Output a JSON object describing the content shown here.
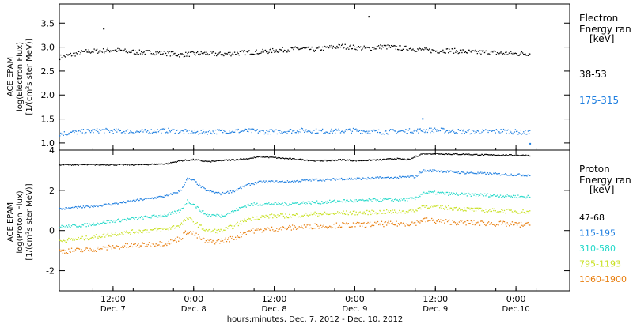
{
  "chart_data": [
    {
      "type": "scatter",
      "panel": "electron",
      "ylabel_lines": [
        "ACE EPAM",
        "log(Electron Flux)",
        "[1/(cm²s ster MeV)]"
      ],
      "legend_title_lines": [
        "Electron",
        "Energy ran",
        "[keV]"
      ],
      "xlim": [
        0,
        76
      ],
      "ylim": [
        0.85,
        3.9
      ],
      "yticks": [
        1.0,
        1.5,
        2.0,
        2.5,
        3.0,
        3.5
      ],
      "ytick_labels": [
        "1.0",
        "1.5",
        "2.0",
        "2.5",
        "3.0",
        "3.5"
      ],
      "series": [
        {
          "name": "38-53",
          "color": "#000000",
          "x": [
            0,
            2,
            4,
            6,
            8,
            10,
            12,
            14,
            16,
            18,
            20,
            22,
            24,
            26,
            28,
            30,
            32,
            34,
            36,
            38,
            40,
            42,
            44,
            46,
            48,
            50,
            52,
            54,
            56,
            58,
            60,
            62,
            64,
            66,
            68,
            70
          ],
          "y": [
            2.8,
            2.86,
            2.92,
            2.93,
            2.95,
            2.92,
            2.9,
            2.9,
            2.88,
            2.85,
            2.87,
            2.88,
            2.86,
            2.88,
            2.9,
            2.91,
            2.94,
            2.96,
            2.98,
            2.96,
            3.0,
            3.03,
            3.0,
            2.98,
            3.02,
            3.0,
            2.98,
            2.95,
            2.93,
            2.94,
            2.92,
            2.9,
            2.9,
            2.88,
            2.87,
            2.88
          ],
          "outliers": [
            [
              6.5,
              3.4
            ],
            [
              46,
              3.65
            ]
          ]
        },
        {
          "name": "175-315",
          "color": "#1f7fe0",
          "x": [
            0,
            2,
            4,
            6,
            8,
            10,
            12,
            14,
            16,
            18,
            20,
            22,
            24,
            26,
            28,
            30,
            32,
            34,
            36,
            38,
            40,
            42,
            44,
            46,
            48,
            50,
            52,
            54,
            56,
            58,
            60,
            62,
            64,
            66,
            68,
            70
          ],
          "y": [
            1.2,
            1.23,
            1.25,
            1.27,
            1.26,
            1.25,
            1.24,
            1.26,
            1.27,
            1.25,
            1.23,
            1.24,
            1.25,
            1.26,
            1.26,
            1.25,
            1.24,
            1.26,
            1.27,
            1.26,
            1.25,
            1.26,
            1.27,
            1.25,
            1.24,
            1.25,
            1.26,
            1.27,
            1.28,
            1.26,
            1.25,
            1.24,
            1.25,
            1.26,
            1.24,
            1.22
          ],
          "outliers": [
            [
              54,
              1.52
            ],
            [
              70,
              1.0
            ]
          ]
        }
      ]
    },
    {
      "type": "scatter",
      "panel": "proton",
      "ylabel_lines": [
        "ACE EPAM",
        "log(Proton Flux)",
        "[1/(cm²s ster MeV)]"
      ],
      "legend_title_lines": [
        "Proton",
        "Energy ran",
        "[keV]"
      ],
      "xlim": [
        0,
        76
      ],
      "ylim": [
        -3.0,
        4.0
      ],
      "yticks": [
        -2,
        0,
        2,
        4
      ],
      "ytick_labels": [
        "-2",
        "0",
        "2",
        "4"
      ],
      "series": [
        {
          "name": "47-68",
          "color": "#000000",
          "x": [
            0,
            4,
            8,
            12,
            16,
            18,
            20,
            22,
            24,
            26,
            28,
            30,
            32,
            34,
            36,
            38,
            40,
            42,
            44,
            46,
            48,
            50,
            52,
            54,
            56,
            58,
            60,
            62,
            64,
            66,
            68,
            70
          ],
          "y": [
            3.3,
            3.3,
            3.3,
            3.3,
            3.35,
            3.5,
            3.55,
            3.45,
            3.5,
            3.55,
            3.6,
            3.7,
            3.65,
            3.6,
            3.55,
            3.5,
            3.5,
            3.55,
            3.5,
            3.52,
            3.55,
            3.6,
            3.55,
            3.85,
            3.85,
            3.83,
            3.82,
            3.8,
            3.78,
            3.78,
            3.77,
            3.76
          ]
        },
        {
          "name": "115-195",
          "color": "#1f7fe0",
          "x": [
            0,
            4,
            8,
            12,
            16,
            18,
            19,
            20,
            21,
            22,
            24,
            26,
            28,
            30,
            32,
            34,
            36,
            38,
            40,
            42,
            44,
            46,
            48,
            50,
            52,
            53,
            54,
            56,
            58,
            60,
            62,
            64,
            66,
            68,
            70
          ],
          "y": [
            1.1,
            1.2,
            1.35,
            1.55,
            1.75,
            2.0,
            2.6,
            2.5,
            2.2,
            2.0,
            1.85,
            2.0,
            2.3,
            2.45,
            2.45,
            2.45,
            2.5,
            2.55,
            2.55,
            2.6,
            2.6,
            2.62,
            2.65,
            2.65,
            2.7,
            2.7,
            3.0,
            3.0,
            2.95,
            2.9,
            2.88,
            2.85,
            2.82,
            2.8,
            2.78
          ]
        },
        {
          "name": "310-580",
          "color": "#20d8c8",
          "x": [
            0,
            4,
            8,
            12,
            16,
            18,
            19,
            20,
            21,
            22,
            24,
            26,
            28,
            30,
            32,
            34,
            36,
            38,
            40,
            42,
            44,
            46,
            48,
            50,
            52,
            53,
            54,
            56,
            58,
            60,
            62,
            64,
            66,
            68,
            70
          ],
          "y": [
            0.2,
            0.3,
            0.5,
            0.65,
            0.8,
            1.0,
            1.5,
            1.3,
            1.0,
            0.8,
            0.75,
            1.0,
            1.3,
            1.35,
            1.35,
            1.35,
            1.4,
            1.42,
            1.45,
            1.5,
            1.5,
            1.52,
            1.55,
            1.55,
            1.58,
            1.6,
            1.9,
            1.9,
            1.85,
            1.82,
            1.8,
            1.78,
            1.75,
            1.72,
            1.7
          ]
        },
        {
          "name": "795-1193",
          "color": "#c8e020",
          "x": [
            0,
            4,
            8,
            12,
            16,
            18,
            19,
            20,
            21,
            22,
            24,
            26,
            28,
            30,
            32,
            34,
            36,
            38,
            40,
            42,
            44,
            46,
            48,
            50,
            52,
            53,
            54,
            56,
            58,
            60,
            62,
            64,
            66,
            68,
            70
          ],
          "y": [
            -0.5,
            -0.35,
            -0.15,
            0.0,
            0.1,
            0.3,
            0.65,
            0.45,
            0.2,
            0.0,
            0.0,
            0.25,
            0.6,
            0.7,
            0.75,
            0.75,
            0.8,
            0.85,
            0.85,
            0.9,
            0.9,
            0.92,
            0.95,
            0.95,
            0.98,
            1.0,
            1.25,
            1.2,
            1.15,
            1.1,
            1.05,
            1.02,
            1.0,
            0.98,
            0.95
          ]
        },
        {
          "name": "1060-1900",
          "color": "#e87f10",
          "x": [
            0,
            4,
            8,
            12,
            16,
            18,
            19,
            20,
            21,
            22,
            24,
            26,
            28,
            30,
            32,
            34,
            36,
            38,
            40,
            42,
            44,
            46,
            48,
            50,
            52,
            53,
            54,
            56,
            58,
            60,
            62,
            64,
            66,
            68,
            70
          ],
          "y": [
            -1.0,
            -0.95,
            -0.8,
            -0.7,
            -0.6,
            -0.35,
            0.0,
            -0.15,
            -0.4,
            -0.55,
            -0.5,
            -0.35,
            0.0,
            0.05,
            0.1,
            0.15,
            0.2,
            0.25,
            0.25,
            0.3,
            0.3,
            0.32,
            0.35,
            0.35,
            0.38,
            0.4,
            0.55,
            0.5,
            0.45,
            0.42,
            0.4,
            0.38,
            0.35,
            0.32,
            0.3
          ]
        }
      ]
    }
  ],
  "xaxis": {
    "xlim": [
      0,
      76
    ],
    "ticks": [
      {
        "x": 8,
        "label1": "12:00",
        "label2": "Dec. 7"
      },
      {
        "x": 20,
        "label1": "0:00",
        "label2": "Dec. 8"
      },
      {
        "x": 32,
        "label1": "12:00",
        "label2": "Dec. 8"
      },
      {
        "x": 44,
        "label1": "0:00",
        "label2": "Dec. 9"
      },
      {
        "x": 56,
        "label1": "12:00",
        "label2": "Dec. 9"
      },
      {
        "x": 68,
        "label1": "0:00",
        "label2": "Dec.10"
      }
    ],
    "xlabel": "hours:minutes, Dec.  7, 2012 - Dec. 10, 2012"
  }
}
